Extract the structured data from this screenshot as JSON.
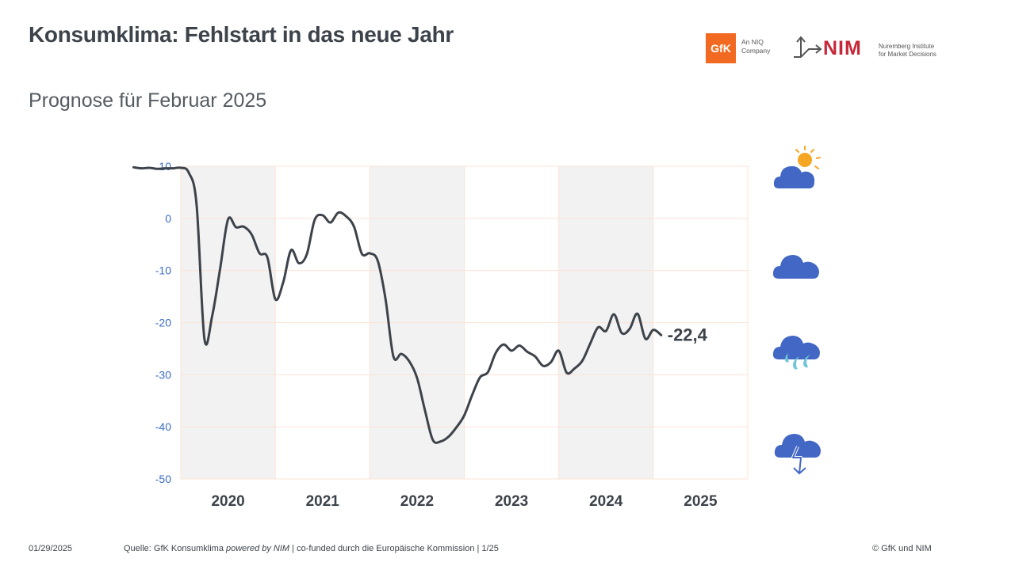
{
  "header": {
    "title": "Konsumklima: Fehlstart in das neue Jahr",
    "subtitle": "Prognose für Februar 2025"
  },
  "logos": {
    "gfk_text": "GfK",
    "gfk_tag_line1": "An NIQ",
    "gfk_tag_line2": "Company",
    "nim_text": "NIM",
    "nim_tag_line1": "Nuremberg Institute",
    "nim_tag_line2": "for Market Decisions",
    "gfk_color": "#f26a21",
    "nim_color": "#c6283a"
  },
  "chart_data": {
    "type": "line",
    "title": "",
    "xlabel": "",
    "ylabel": "",
    "ylim": [
      -50,
      10
    ],
    "yticks": [
      10,
      0,
      -10,
      -20,
      -30,
      -40,
      -50
    ],
    "years": [
      "2020",
      "2021",
      "2022",
      "2023",
      "2024",
      "2025"
    ],
    "shaded_years": [
      "2020",
      "2022",
      "2024"
    ],
    "series": [
      {
        "color": "#3d434a",
        "x": [
          "2019-07",
          "2019-08",
          "2019-09",
          "2019-10",
          "2019-11",
          "2019-12",
          "2020-01",
          "2020-02",
          "2020-03",
          "2020-04",
          "2020-05",
          "2020-06",
          "2020-07",
          "2020-08",
          "2020-09",
          "2020-10",
          "2020-11",
          "2020-12",
          "2021-01",
          "2021-02",
          "2021-03",
          "2021-04",
          "2021-05",
          "2021-06",
          "2021-07",
          "2021-08",
          "2021-09",
          "2021-10",
          "2021-11",
          "2021-12",
          "2022-01",
          "2022-02",
          "2022-03",
          "2022-04",
          "2022-05",
          "2022-06",
          "2022-07",
          "2022-08",
          "2022-09",
          "2022-10",
          "2022-11",
          "2022-12",
          "2023-01",
          "2023-02",
          "2023-03",
          "2023-04",
          "2023-05",
          "2023-06",
          "2023-07",
          "2023-08",
          "2023-09",
          "2023-10",
          "2023-11",
          "2023-12",
          "2024-01",
          "2024-02",
          "2024-03",
          "2024-04",
          "2024-05",
          "2024-06",
          "2024-07",
          "2024-08",
          "2024-09",
          "2024-10",
          "2024-11",
          "2024-12",
          "2025-01",
          "2025-02"
        ],
        "values": [
          9.8,
          9.6,
          9.7,
          9.5,
          9.6,
          9.6,
          9.7,
          8.8,
          2.7,
          -23.1,
          -18.6,
          -9.6,
          -0.2,
          -1.7,
          -1.6,
          -3.1,
          -6.7,
          -7.5,
          -15.5,
          -12.3,
          -6.1,
          -8.6,
          -6.9,
          -0.3,
          0.6,
          -0.8,
          1.1,
          0.4,
          -1.6,
          -6.8,
          -6.7,
          -8.1,
          -15.5,
          -26.5,
          -26.0,
          -27.4,
          -30.6,
          -36.8,
          -42.5,
          -42.8,
          -41.9,
          -40.1,
          -37.8,
          -33.9,
          -30.5,
          -29.5,
          -25.8,
          -24.2,
          -25.4,
          -24.4,
          -25.6,
          -26.5,
          -28.3,
          -27.6,
          -25.4,
          -29.6,
          -28.8,
          -27.3,
          -24.0,
          -20.9,
          -21.6,
          -18.4,
          -22.0,
          -21.2,
          -18.3,
          -23.1,
          -21.4,
          -22.4
        ]
      }
    ],
    "last_value_label": "-22,4"
  },
  "weather_icons": [
    "sun-cloud-icon",
    "cloud-icon",
    "rain-cloud-icon",
    "storm-cloud-icon"
  ],
  "footer": {
    "date": "01/29/2025",
    "source_prefix": "Quelle: GfK Konsumklima ",
    "source_italic": "powered by NIM",
    "source_suffix": " | co-funded durch die Europäische Kommission | 1/25",
    "copyright": "© GfK und NIM"
  }
}
